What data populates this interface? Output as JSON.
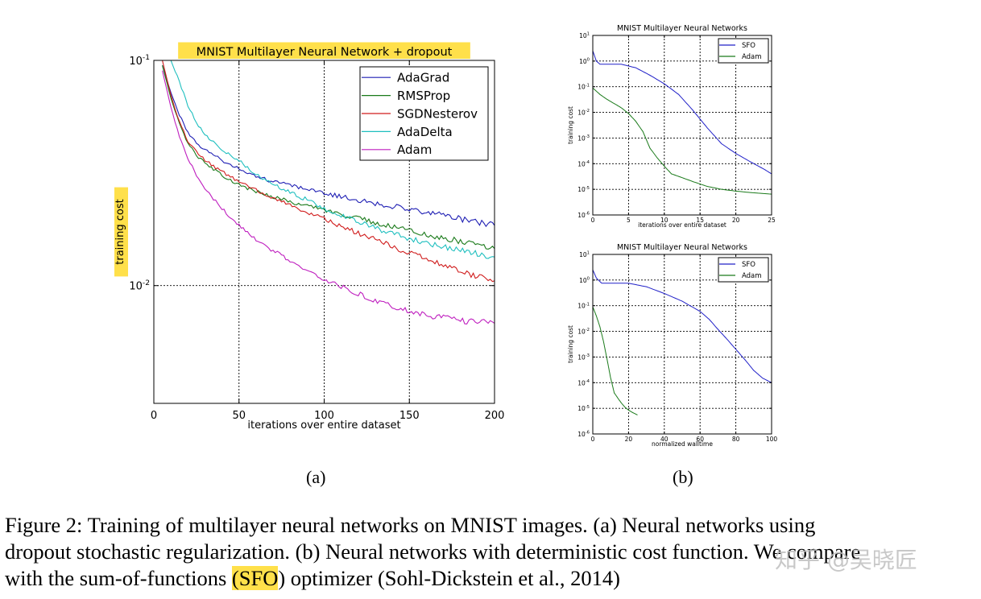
{
  "chart_data": [
    {
      "type": "line",
      "title": "MNIST Multilayer Neural Network + dropout",
      "xlabel": "iterations over entire dataset",
      "ylabel": "training cost",
      "yscale": "log",
      "xlim": [
        0,
        200
      ],
      "ylim": [
        0.003,
        0.1
      ],
      "xticks": [
        "0",
        "50",
        "100",
        "150",
        "200"
      ],
      "yticks": [
        {
          "value": 0.1,
          "base": "10",
          "exp": "-1"
        },
        {
          "value": 0.01,
          "base": "10",
          "exp": "-2"
        }
      ],
      "grid": true,
      "legend_position": "top-right",
      "series": [
        {
          "name": "AdaGrad",
          "color": "#1f1fb4",
          "x": [
            5,
            10,
            15,
            20,
            25,
            30,
            40,
            50,
            60,
            70,
            80,
            90,
            100,
            110,
            120,
            130,
            140,
            150,
            160,
            170,
            180,
            190,
            200
          ],
          "y": [
            0.095,
            0.072,
            0.057,
            0.048,
            0.043,
            0.04,
            0.036,
            0.033,
            0.0305,
            0.029,
            0.028,
            0.0268,
            0.0258,
            0.0248,
            0.024,
            0.0232,
            0.0225,
            0.0218,
            0.0212,
            0.0205,
            0.0198,
            0.0192,
            0.0185
          ]
        },
        {
          "name": "RMSProp",
          "color": "#1a7a1a",
          "x": [
            5,
            10,
            15,
            20,
            25,
            30,
            40,
            50,
            60,
            70,
            80,
            90,
            100,
            110,
            120,
            130,
            140,
            150,
            160,
            170,
            180,
            190,
            200
          ],
          "y": [
            0.095,
            0.068,
            0.052,
            0.043,
            0.038,
            0.035,
            0.031,
            0.028,
            0.0262,
            0.0248,
            0.0236,
            0.0226,
            0.0216,
            0.0207,
            0.0199,
            0.0191,
            0.0183,
            0.0176,
            0.0169,
            0.0163,
            0.0157,
            0.0151,
            0.0146
          ]
        },
        {
          "name": "SGDNesterov",
          "color": "#d01c1c",
          "x": [
            5,
            10,
            15,
            20,
            25,
            30,
            40,
            50,
            60,
            70,
            80,
            90,
            100,
            110,
            120,
            130,
            140,
            150,
            160,
            170,
            180,
            190,
            200
          ],
          "y": [
            0.1,
            0.07,
            0.053,
            0.044,
            0.039,
            0.036,
            0.032,
            0.029,
            0.0265,
            0.0245,
            0.0228,
            0.0212,
            0.0197,
            0.0183,
            0.0171,
            0.016,
            0.0149,
            0.014,
            0.0131,
            0.0123,
            0.0116,
            0.011,
            0.0105
          ]
        },
        {
          "name": "AdaDelta",
          "color": "#1fbfbf",
          "x": [
            10,
            15,
            20,
            25,
            30,
            40,
            50,
            60,
            70,
            80,
            90,
            100,
            110,
            120,
            130,
            140,
            150,
            160,
            170,
            180,
            190,
            200
          ],
          "y": [
            0.1,
            0.08,
            0.063,
            0.053,
            0.047,
            0.04,
            0.036,
            0.031,
            0.028,
            0.026,
            0.024,
            0.022,
            0.0205,
            0.0192,
            0.018,
            0.017,
            0.0162,
            0.0155,
            0.0149,
            0.0144,
            0.0139,
            0.0134
          ]
        },
        {
          "name": "Adam",
          "color": "#bf1fbf",
          "x": [
            5,
            10,
            15,
            20,
            25,
            30,
            40,
            50,
            60,
            70,
            80,
            90,
            100,
            110,
            120,
            130,
            140,
            150,
            160,
            170,
            180,
            190,
            200
          ],
          "y": [
            0.09,
            0.062,
            0.046,
            0.037,
            0.031,
            0.027,
            0.022,
            0.0185,
            0.016,
            0.0143,
            0.0129,
            0.0117,
            0.0107,
            0.0099,
            0.0092,
            0.0086,
            0.0081,
            0.0077,
            0.0074,
            0.0072,
            0.007,
            0.0069,
            0.0068
          ]
        }
      ]
    },
    {
      "type": "line",
      "title": "MNIST Multilayer Neural Networks",
      "xlabel": "iterations over entire dataset",
      "ylabel": "training cost",
      "yscale": "log",
      "xlim": [
        0,
        25
      ],
      "ylim": [
        1e-06,
        10
      ],
      "xticks": [
        "0",
        "5",
        "10",
        "15",
        "20",
        "25"
      ],
      "yticks_exp": [
        "1",
        "0",
        "-1",
        "-2",
        "-3",
        "-4",
        "-5",
        "-6"
      ],
      "grid": true,
      "legend_position": "top-right",
      "series": [
        {
          "name": "SFO",
          "color": "#2020c8",
          "x": [
            0,
            0.5,
            1,
            2,
            4,
            6,
            8,
            10,
            12,
            14,
            16,
            18,
            20,
            22,
            24,
            25
          ],
          "y": [
            2.5,
            1.0,
            0.75,
            0.75,
            0.75,
            0.55,
            0.28,
            0.13,
            0.05,
            0.012,
            0.0025,
            0.0006,
            0.00025,
            0.00012,
            6e-05,
            4e-05
          ]
        },
        {
          "name": "Adam",
          "color": "#1a7a1a",
          "x": [
            0,
            1,
            2,
            3,
            4,
            5,
            6,
            7,
            8,
            9,
            10,
            11,
            12,
            14,
            16,
            18,
            20,
            22,
            25
          ],
          "y": [
            0.09,
            0.05,
            0.032,
            0.022,
            0.015,
            0.009,
            0.0045,
            0.0018,
            0.0004,
            0.00017,
            8e-05,
            4e-05,
            3.2e-05,
            2e-05,
            1.3e-05,
            1e-05,
            8.5e-06,
            7.5e-06,
            6.5e-06
          ]
        }
      ]
    },
    {
      "type": "line",
      "title": "MNIST Multilayer Neural Networks",
      "xlabel": "normalized walltime",
      "ylabel": "training cost",
      "yscale": "log",
      "xlim": [
        0,
        100
      ],
      "ylim": [
        1e-06,
        10
      ],
      "xticks": [
        "0",
        "20",
        "40",
        "60",
        "80",
        "100"
      ],
      "yticks_exp": [
        "1",
        "0",
        "-1",
        "-2",
        "-3",
        "-4",
        "-5",
        "-6"
      ],
      "grid": true,
      "legend_position": "top-right",
      "series": [
        {
          "name": "SFO",
          "color": "#2020c8",
          "x": [
            0,
            2,
            5,
            10,
            15,
            20,
            30,
            40,
            50,
            60,
            65,
            70,
            75,
            80,
            85,
            90,
            95,
            100
          ],
          "y": [
            2.5,
            1.2,
            0.75,
            0.75,
            0.75,
            0.75,
            0.55,
            0.3,
            0.15,
            0.06,
            0.03,
            0.012,
            0.005,
            0.002,
            0.0008,
            0.0003,
            0.00015,
            0.0001
          ]
        },
        {
          "name": "Adam",
          "color": "#1a7a1a",
          "x": [
            0,
            2,
            4,
            6,
            8,
            10,
            12,
            14,
            16,
            18,
            20,
            22,
            25
          ],
          "y": [
            0.09,
            0.04,
            0.015,
            0.004,
            0.0008,
            0.00015,
            4e-05,
            2.5e-05,
            1.6e-05,
            1.1e-05,
            8.5e-06,
            7e-06,
            5.5e-06
          ]
        }
      ]
    }
  ],
  "labels": {
    "sub_a": "(a)",
    "sub_b": "(b)"
  },
  "caption": {
    "line1": "Figure 2: Training of multilayer neural networks on MNIST images.  (a) Neural networks using",
    "line2": "dropout stochastic regularization. (b) Neural networks with deterministic cost function. We compare",
    "line3_pre": "with the sum-of-functions ",
    "line3_hl": "(SFO",
    "line3_post": ") optimizer (Sohl-Dickstein et al., 2014)"
  },
  "watermark": "知乎 @吴晓匠",
  "colors": {
    "highlight": "#ffe04a"
  }
}
